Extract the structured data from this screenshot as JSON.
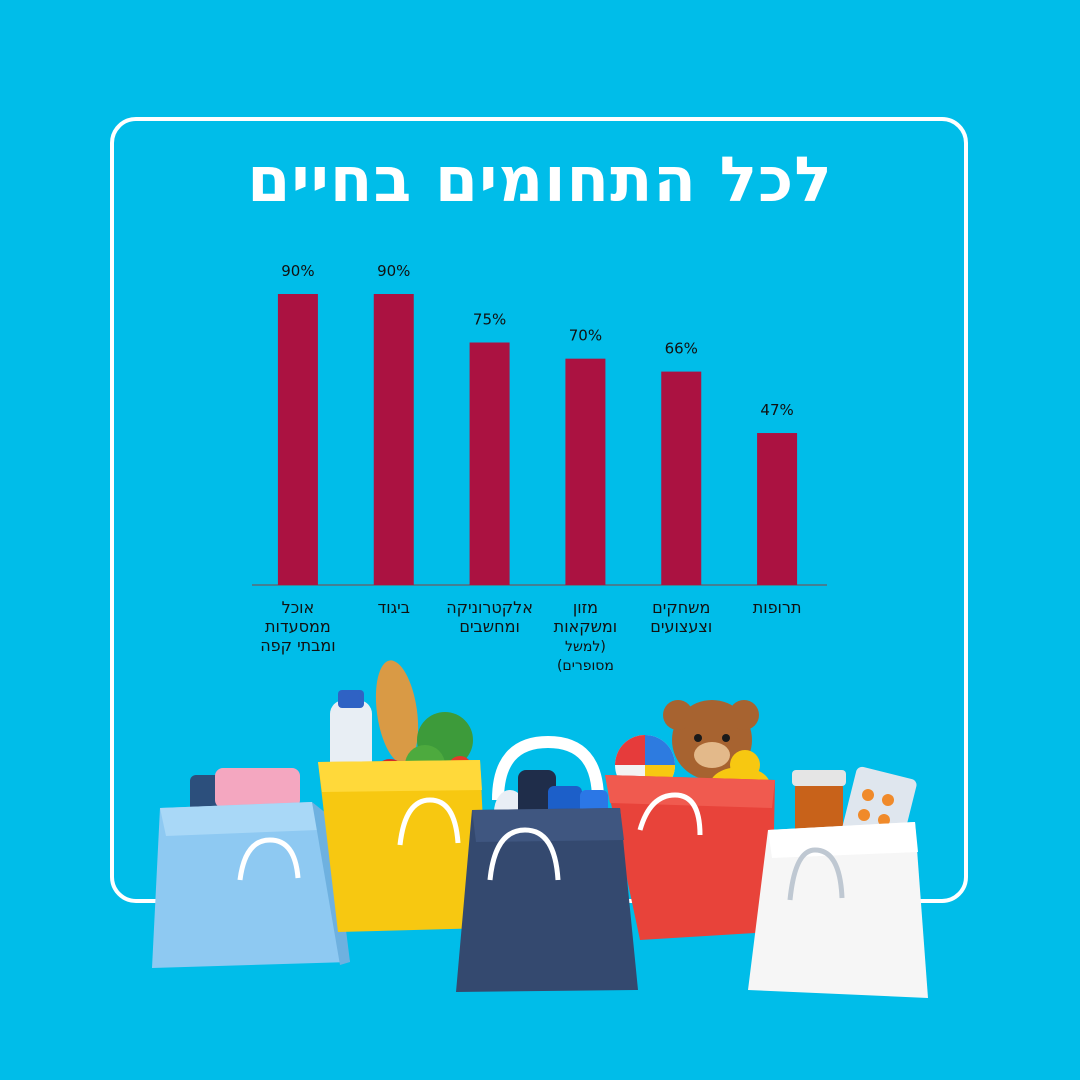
{
  "title": "לכל התחומים בחיים",
  "colors": {
    "background": "#00bde9",
    "bar": "#ab1241",
    "frame": "#ffffff",
    "axis": "#5a6b78",
    "text": "#111111"
  },
  "chart_data": {
    "type": "bar",
    "categories": [
      [
        "אוכל",
        "ממסעדות",
        "ומבתי קפה"
      ],
      [
        "ביגוד"
      ],
      [
        "אלקטרוניקה",
        "ומחשבים"
      ],
      [
        "מזון",
        "ומשקאות",
        "(למשל",
        "מסופרים)"
      ],
      [
        "משחקים",
        "וצעצועים"
      ],
      [
        "תרופות"
      ]
    ],
    "values": [
      90,
      90,
      75,
      70,
      66,
      47
    ],
    "value_labels": [
      "90%",
      "90%",
      "75%",
      "70%",
      "66%",
      "47%"
    ],
    "ylim": [
      0,
      100
    ],
    "grid": false,
    "legend": "none"
  },
  "illustration": {
    "description_icons": [
      "shopping-bag-light-blue-icon",
      "shopping-bag-yellow-icon",
      "shopping-bag-navy-icon",
      "shopping-bag-red-icon",
      "shopping-bag-white-icon"
    ]
  }
}
